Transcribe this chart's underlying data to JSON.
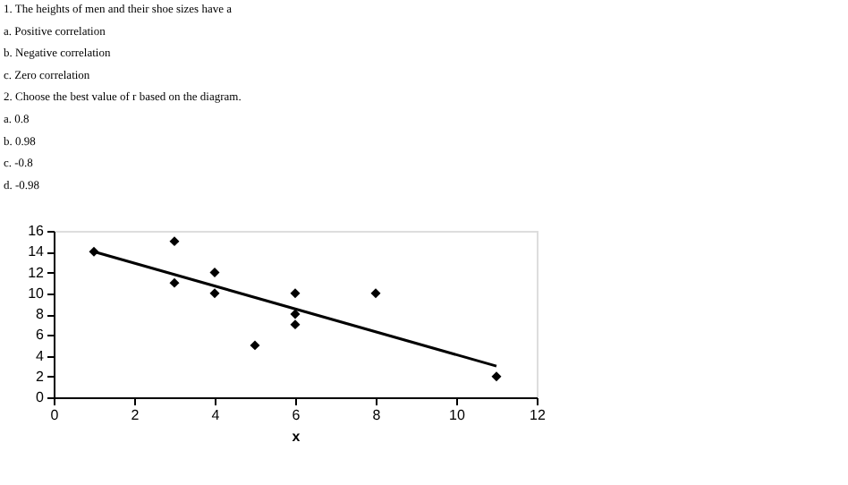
{
  "chart_data": {
    "type": "scatter",
    "xlabel": "x",
    "annotations": [
      "1.  The heights of men and their shoe sizes have a",
      "a.  Positive correlation",
      "b.  Negative correlation",
      "c.  Zero correlation",
      "2.  Choose the best value of r based on the diagram.",
      "a.  0.8",
      "b.  0.98",
      "c.  -0.8",
      "d.  -0.98"
    ],
    "x": [
      1,
      3,
      3,
      4,
      4,
      5,
      6,
      6,
      6,
      8,
      11
    ],
    "series": [
      {
        "color": "#000000",
        "marker": "diamond",
        "values": [
          14,
          15,
          11,
          12,
          10,
          5,
          10,
          8,
          7,
          10,
          2
        ]
      },
      {
        "type": "line",
        "color": "#000000",
        "x": [
          1,
          11
        ],
        "values": [
          14,
          3
        ]
      }
    ],
    "xlim": [
      0,
      12
    ],
    "xticks": [
      0,
      2,
      4,
      6,
      8,
      10,
      12
    ],
    "ylim": [
      0,
      16
    ],
    "yticks": [
      0,
      2,
      4,
      6,
      8,
      10,
      12,
      14,
      16
    ]
  }
}
